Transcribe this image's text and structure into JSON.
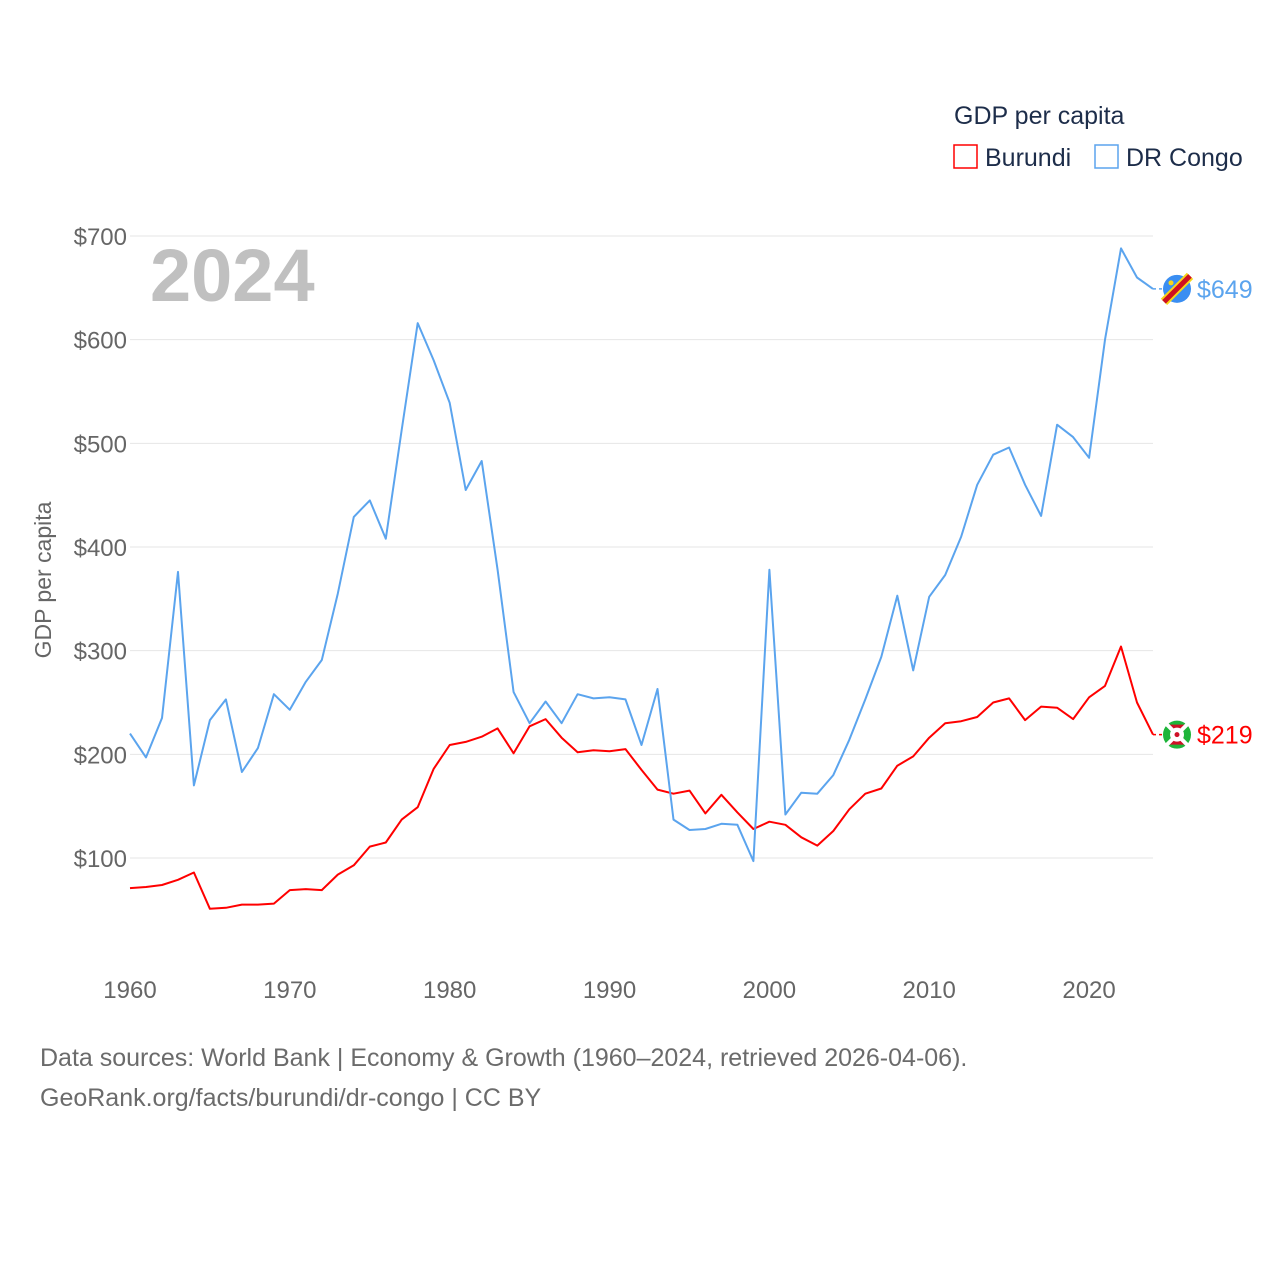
{
  "chart_data": {
    "type": "line",
    "title": "GDP per capita",
    "ylabel": "GDP per capita",
    "xlabel": "",
    "year_overlay": "2024",
    "ylim": [
      0,
      700
    ],
    "xlim": [
      1960,
      2024
    ],
    "yticks": [
      100,
      200,
      300,
      400,
      500,
      600,
      700
    ],
    "ytick_labels": [
      "$100",
      "$200",
      "$300",
      "$400",
      "$500",
      "$600",
      "$700"
    ],
    "xticks": [
      1960,
      1970,
      1980,
      1990,
      2000,
      2010,
      2020
    ],
    "xtick_labels": [
      "1960",
      "1970",
      "1980",
      "1990",
      "2000",
      "2010",
      "2020"
    ],
    "grid": true,
    "legend_position": "top-right",
    "x": [
      1960,
      1961,
      1962,
      1963,
      1964,
      1965,
      1966,
      1967,
      1968,
      1969,
      1970,
      1971,
      1972,
      1973,
      1974,
      1975,
      1976,
      1977,
      1978,
      1979,
      1980,
      1981,
      1982,
      1983,
      1984,
      1985,
      1986,
      1987,
      1988,
      1989,
      1990,
      1991,
      1992,
      1993,
      1994,
      1995,
      1996,
      1997,
      1998,
      1999,
      2000,
      2001,
      2002,
      2003,
      2004,
      2005,
      2006,
      2007,
      2008,
      2009,
      2010,
      2011,
      2012,
      2013,
      2014,
      2015,
      2016,
      2017,
      2018,
      2019,
      2020,
      2021,
      2022,
      2023,
      2024
    ],
    "series": [
      {
        "name": "Burundi",
        "color": "#ff0000",
        "end_label": "$219",
        "flag": "burundi-flag",
        "values": [
          71,
          72,
          74,
          79,
          86,
          51,
          52,
          55,
          55,
          56,
          69,
          70,
          69,
          84,
          93,
          111,
          115,
          137,
          149,
          186,
          209,
          212,
          217,
          225,
          201,
          227,
          234,
          216,
          202,
          204,
          203,
          205,
          185,
          166,
          162,
          165,
          143,
          161,
          144,
          128,
          135,
          132,
          120,
          112,
          126,
          147,
          162,
          167,
          189,
          198,
          216,
          230,
          232,
          236,
          250,
          254,
          233,
          246,
          245,
          234,
          255,
          266,
          304,
          250,
          219
        ]
      },
      {
        "name": "DR Congo",
        "color": "#5ba4ee",
        "end_label": "$649",
        "flag": "dr-congo-flag",
        "values": [
          220,
          197,
          235,
          376,
          170,
          233,
          253,
          183,
          206,
          258,
          243,
          270,
          291,
          355,
          429,
          445,
          408,
          513,
          616,
          580,
          539,
          455,
          483,
          378,
          260,
          230,
          251,
          230,
          258,
          254,
          255,
          253,
          209,
          263,
          137,
          127,
          128,
          133,
          132,
          97,
          378,
          142,
          163,
          162,
          180,
          214,
          253,
          294,
          353,
          281,
          352,
          373,
          410,
          460,
          489,
          496,
          460,
          430,
          518,
          506,
          486,
          600,
          688,
          660,
          649
        ]
      }
    ]
  },
  "footer": {
    "line1": "Data sources: World Bank | Economy & Growth (1960–2024, retrieved 2026-04-06).",
    "line2": "GeoRank.org/facts/burundi/dr-congo | CC BY"
  }
}
